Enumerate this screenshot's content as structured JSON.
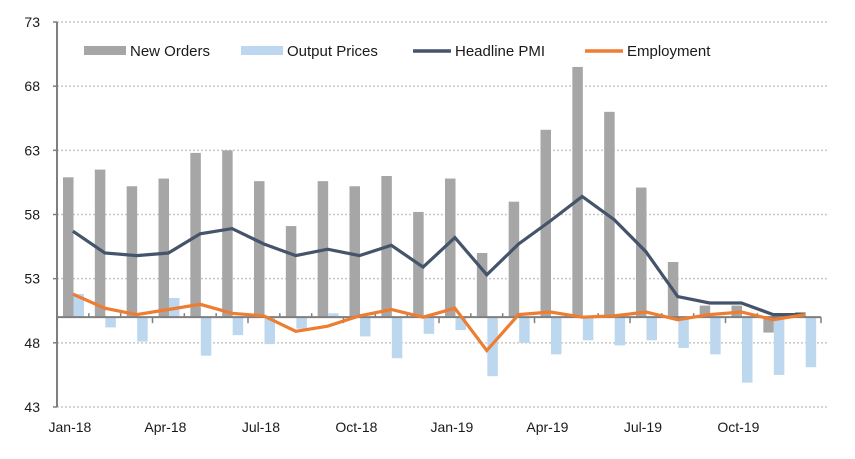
{
  "chart_data": {
    "type": "bar",
    "title": "",
    "xlabel": "",
    "ylabel": "",
    "ylim": [
      43,
      73
    ],
    "yticks": [
      43,
      48,
      53,
      58,
      63,
      68,
      73
    ],
    "bar_baseline": 50,
    "grid": true,
    "legend_position": "top",
    "categories": [
      "Jan-18",
      "Feb-18",
      "Mar-18",
      "Apr-18",
      "May-18",
      "Jun-18",
      "Jul-18",
      "Aug-18",
      "Sep-18",
      "Oct-18",
      "Nov-18",
      "Dec-18",
      "Jan-19",
      "Feb-19",
      "Mar-19",
      "Apr-19",
      "May-19",
      "Jun-19",
      "Jul-19",
      "Aug-19",
      "Sep-19",
      "Oct-19",
      "Nov-19",
      "Dec-19"
    ],
    "xtick_labels": [
      "Jan-18",
      "Apr-18",
      "Jul-18",
      "Oct-18",
      "Jan-19",
      "Apr-19",
      "Jul-19",
      "Oct-19"
    ],
    "series": [
      {
        "name": "New Orders",
        "kind": "bar",
        "color": "#a6a6a6",
        "values": [
          60.9,
          61.5,
          60.2,
          60.8,
          62.8,
          63.0,
          60.6,
          57.1,
          60.6,
          60.2,
          61.0,
          58.2,
          60.8,
          55.0,
          59.0,
          64.6,
          69.5,
          66.0,
          60.1,
          54.3,
          50.9,
          50.9,
          48.8,
          50.4
        ]
      },
      {
        "name": "Output Prices",
        "kind": "bar",
        "color": "#bdd7ee",
        "values": [
          51.8,
          49.2,
          48.1,
          51.5,
          47.0,
          48.6,
          47.9,
          49.1,
          50.3,
          48.5,
          46.8,
          48.7,
          49.0,
          45.4,
          48.0,
          47.1,
          48.2,
          47.8,
          48.2,
          47.6,
          47.1,
          44.9,
          45.5,
          46.1
        ]
      },
      {
        "name": "Headline PMI",
        "kind": "line",
        "color": "#44546a",
        "values": [
          56.7,
          55.0,
          54.8,
          55.0,
          56.5,
          56.9,
          55.7,
          54.8,
          55.3,
          54.8,
          55.6,
          53.9,
          56.2,
          53.3,
          55.7,
          57.5,
          59.4,
          57.6,
          55.1,
          51.6,
          51.1,
          51.1,
          50.2,
          50.2
        ]
      },
      {
        "name": "Employment",
        "kind": "line",
        "color": "#ed7d31",
        "values": [
          51.8,
          50.7,
          50.2,
          50.6,
          51.0,
          50.3,
          50.1,
          48.9,
          49.3,
          50.1,
          50.6,
          50.0,
          50.7,
          47.4,
          50.2,
          50.4,
          50.0,
          50.1,
          50.4,
          49.8,
          50.2,
          50.4,
          49.8,
          50.2
        ]
      }
    ]
  }
}
